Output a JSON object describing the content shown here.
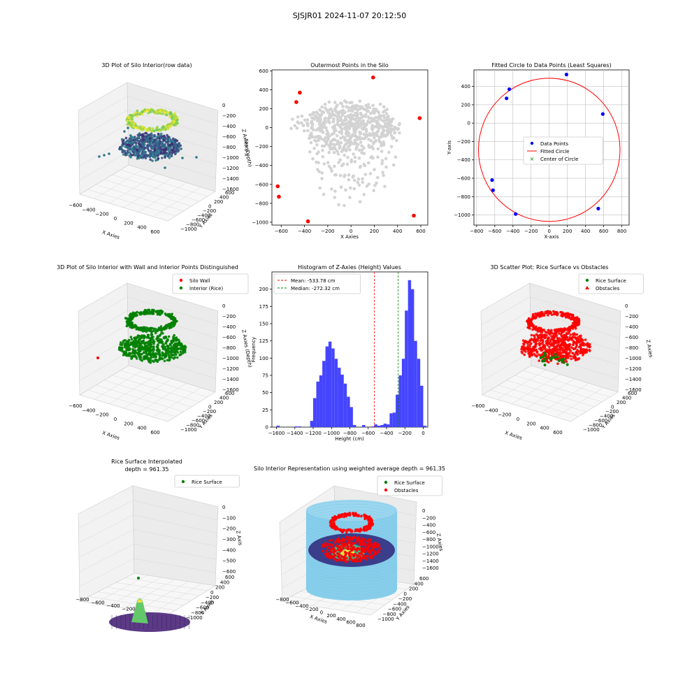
{
  "suptitle": "SJSJR01 2024-11-07 20:12:50",
  "colors": {
    "wall": "#ff0000",
    "rice": "#008000",
    "hist": "#4545ff",
    "gray": "#d3d3d3",
    "blue": "#0000ff",
    "sky": "#87ceeb",
    "mean": "#ff0000",
    "median": "#008000"
  },
  "chart_data": [
    {
      "id": "raw3d",
      "type": "scatter",
      "title": "3D Plot of Silo Interior(row data)",
      "xlabel": "X Axies",
      "ylabel": "Y Axies",
      "zlabel": "Z Axies (Depth)",
      "xticks": [
        "−600",
        "−400",
        "−200",
        "0",
        "200",
        "400",
        "600"
      ],
      "yticks": [
        "−1000",
        "−800",
        "−600",
        "−400",
        "−200",
        "0",
        "200",
        "400",
        "600"
      ],
      "zticks": [
        "0",
        "−200",
        "−400",
        "−600",
        "−800",
        "−1000",
        "−1200",
        "−1400",
        "−1600"
      ],
      "xlim": [
        -600,
        600
      ],
      "ylim": [
        -1000,
        600
      ],
      "zlim": [
        -1600,
        0
      ]
    },
    {
      "id": "outer",
      "type": "scatter",
      "title": "Outermost Points in the Silo",
      "xlabel": "X Axies",
      "ylabel": "Y Axies",
      "xlim": [
        -680,
        660
      ],
      "ylim": [
        -1030,
        610
      ],
      "xticks": [
        -600,
        -400,
        -200,
        0,
        200,
        400,
        600
      ],
      "yticks": [
        -1000,
        -800,
        -600,
        -400,
        -200,
        0,
        200,
        400,
        600
      ],
      "outer_points": [
        [
          -630,
          -620
        ],
        [
          -620,
          -730
        ],
        [
          -470,
          270
        ],
        [
          -440,
          370
        ],
        [
          -370,
          -990
        ],
        [
          190,
          530
        ],
        [
          540,
          -930
        ],
        [
          590,
          100
        ]
      ]
    },
    {
      "id": "circle",
      "type": "scatter",
      "title": "Fitted Circle to Data Points (Least Squares)",
      "xlabel": "X-axis",
      "ylabel": "Y-axis",
      "xlim": [
        -830,
        880
      ],
      "ylim": [
        -1110,
        580
      ],
      "xticks": [
        -800,
        -600,
        -400,
        -200,
        0,
        200,
        400,
        600,
        800
      ],
      "yticks": [
        -1000,
        -800,
        -600,
        -400,
        -200,
        0,
        200,
        400
      ],
      "points": [
        [
          -630,
          -620
        ],
        [
          -620,
          -730
        ],
        [
          -470,
          270
        ],
        [
          -440,
          370
        ],
        [
          -370,
          -990
        ],
        [
          190,
          530
        ],
        [
          540,
          -930
        ],
        [
          590,
          100
        ]
      ],
      "circle": {
        "cx": 0,
        "cy": -290,
        "r": 780
      },
      "legend": [
        "Data Points",
        "Fitted Circle",
        "Center of Circle"
      ]
    },
    {
      "id": "wall3d",
      "type": "scatter",
      "title": "3D Plot of Silo Interior with Wall and Interior Points Distinguished",
      "xlabel": "X Axies",
      "ylabel": "Y Axies",
      "zlabel": "Z Axies (Depth)",
      "xticks": [
        "−600",
        "−400",
        "−200",
        "0",
        "200",
        "400",
        "600"
      ],
      "yticks": [
        "−1000",
        "−800",
        "−600",
        "−400",
        "−200",
        "0",
        "200",
        "400",
        "600"
      ],
      "zticks": [
        "0",
        "−200",
        "−400",
        "−600",
        "−800",
        "−1000",
        "−1200",
        "−1400",
        "−1600"
      ],
      "legend": [
        "Silo Wall",
        "Interior (Rice)"
      ]
    },
    {
      "id": "hist",
      "type": "bar",
      "title": "Histogram of Z-Axies (Height) Values",
      "xlabel": "Height (cm)",
      "ylabel": "Frequency",
      "xlim": [
        -1650,
        50
      ],
      "ylim": [
        0,
        225
      ],
      "xticks": [
        -1600,
        -1400,
        -1200,
        -1000,
        -800,
        -600,
        -400,
        -200,
        0
      ],
      "yticks": [
        0,
        25,
        50,
        75,
        100,
        125,
        150,
        175,
        200
      ],
      "bin_width": 33.3,
      "bins": [
        [
          -1600,
          2
        ],
        [
          -1400,
          1
        ],
        [
          -1366,
          1
        ],
        [
          -1233,
          9
        ],
        [
          -1200,
          42
        ],
        [
          -1166,
          66
        ],
        [
          -1133,
          75
        ],
        [
          -1100,
          96
        ],
        [
          -1066,
          117
        ],
        [
          -1033,
          124
        ],
        [
          -1000,
          114
        ],
        [
          -966,
          99
        ],
        [
          -933,
          86
        ],
        [
          -900,
          76
        ],
        [
          -866,
          63
        ],
        [
          -833,
          44
        ],
        [
          -800,
          29
        ],
        [
          -766,
          3
        ],
        [
          -666,
          3
        ],
        [
          -566,
          1
        ],
        [
          -533,
          4
        ],
        [
          -500,
          2
        ],
        [
          -466,
          3
        ],
        [
          -433,
          5
        ],
        [
          -400,
          4
        ],
        [
          -366,
          20
        ],
        [
          -333,
          21
        ],
        [
          -300,
          47
        ],
        [
          -266,
          75
        ],
        [
          -233,
          99
        ],
        [
          -200,
          169
        ],
        [
          -166,
          213
        ],
        [
          -133,
          200
        ],
        [
          -100,
          125
        ],
        [
          -66,
          99
        ],
        [
          -33,
          60
        ],
        [
          0,
          2
        ]
      ],
      "mean": -533.78,
      "median": -272.32,
      "legend": [
        "Mean: -533.78 cm",
        "Median: -272.32 cm"
      ]
    },
    {
      "id": "rice3d",
      "type": "scatter",
      "title": "3D Scatter Plot: Rice Surface vs Obstacles",
      "xlabel": "X Axies",
      "ylabel": "Y Axies",
      "zlabel": "Z Axies",
      "xticks": [
        "−600",
        "−400",
        "−200",
        "0",
        "200",
        "400",
        "600"
      ],
      "yticks": [
        "−1000",
        "−800",
        "−600",
        "−400",
        "−200",
        "0",
        "200",
        "400",
        "600"
      ],
      "zticks": [
        "0",
        "−200",
        "−400",
        "−600",
        "−800",
        "−1000",
        "−1200",
        "−1400",
        "−1600"
      ],
      "legend": [
        "Rice Surface",
        "Obstacles"
      ]
    },
    {
      "id": "interp",
      "type": "scatter",
      "title": "Rice Surface Interpolated",
      "subtitle": "depth = 961.35",
      "xlabel": "",
      "ylabel": "Y Axies",
      "zlabel": "Z Axis",
      "xticks": [
        "−800",
        "−600",
        "−400",
        "−200",
        "0"
      ],
      "yticks": [
        "−1000",
        "−800",
        "−600",
        "−400",
        "−200",
        "0",
        "200",
        "400",
        "600"
      ],
      "zticks": [
        "0",
        "−100",
        "−200",
        "−300",
        "−400",
        "−500",
        "−600"
      ],
      "legend": [
        "Rice Surface"
      ]
    },
    {
      "id": "silo3d",
      "type": "scatter",
      "title": "Silo Interior Representation using weighted average depth = 961.35",
      "xlabel": "X Axies",
      "ylabel": "Y Axies",
      "zlabel": "Z Axies",
      "xticks": [
        "−800",
        "−600",
        "−400",
        "−200",
        "0",
        "200",
        "400",
        "600",
        "800"
      ],
      "yticks": [
        "−1000",
        "−800",
        "−600",
        "−400",
        "−200",
        "0",
        "200",
        "400",
        "600"
      ],
      "zticks": [
        "0",
        "−200",
        "−400",
        "−600",
        "−800",
        "−1000",
        "−1200",
        "−1400",
        "−1600"
      ],
      "legend": [
        "Rice Surface",
        "Obstacles"
      ]
    }
  ]
}
